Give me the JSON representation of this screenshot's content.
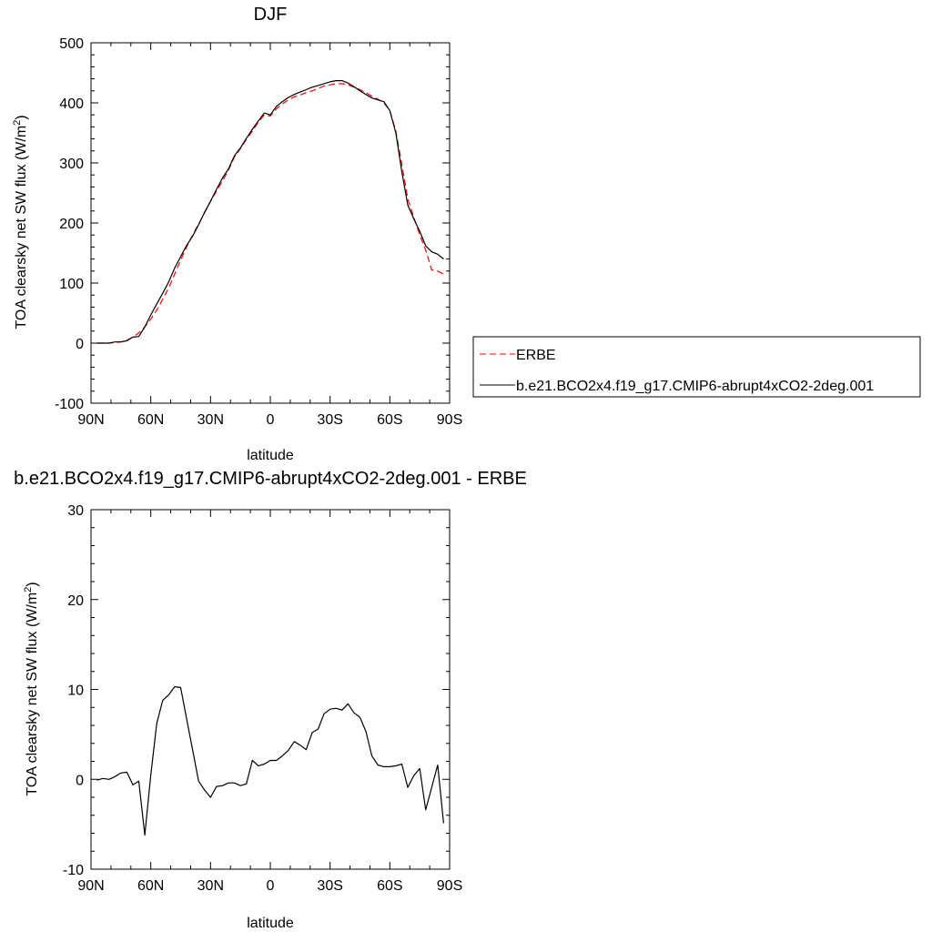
{
  "chart_data": [
    {
      "type": "line",
      "title": "DJF",
      "xlabel": "latitude",
      "ylabel": "TOA clearsky net SW flux (W/m",
      "ylabel_superscript": "2",
      "ylabel_close": ")",
      "xlim": [
        -90,
        90
      ],
      "ylim": [
        -100,
        500
      ],
      "x_ticks": [
        -90,
        -60,
        -30,
        0,
        30,
        60,
        90
      ],
      "x_tick_labels": [
        "90N",
        "60N",
        "30N",
        "0",
        "30S",
        "60S",
        "90S"
      ],
      "y_ticks": [
        -100,
        0,
        100,
        200,
        300,
        400,
        500
      ],
      "y_tick_labels": [
        "-100",
        "0",
        "100",
        "200",
        "300",
        "400",
        "500"
      ],
      "legend_position": "right",
      "grid": false,
      "series": [
        {
          "name": "ERBE",
          "color": "#ff0000",
          "dash": "dashed",
          "x": [
            -87,
            -84,
            -81,
            -78,
            -75,
            -72,
            -69,
            -66,
            -63,
            -60,
            -57,
            -54,
            -51,
            -48,
            -45,
            -42,
            -39,
            -36,
            -33,
            -30,
            -27,
            -24,
            -21,
            -18,
            -15,
            -12,
            -9,
            -6,
            -3,
            0,
            3,
            6,
            9,
            12,
            15,
            18,
            21,
            24,
            27,
            30,
            33,
            36,
            39,
            42,
            45,
            48,
            51,
            54,
            57,
            60,
            63,
            66,
            69,
            72,
            75,
            78,
            81,
            84,
            87
          ],
          "y": [
            0,
            0,
            0,
            1,
            2,
            5,
            10,
            17,
            27,
            40,
            55,
            73,
            92,
            115,
            138,
            160,
            180,
            198,
            217,
            236,
            253,
            270,
            288,
            310,
            324,
            339,
            353,
            368,
            380,
            378,
            390,
            398,
            405,
            410,
            413,
            417,
            420,
            424,
            428,
            430,
            432,
            432,
            430,
            426,
            422,
            417,
            411,
            406,
            400,
            387,
            353,
            298,
            240,
            210,
            180,
            155,
            122,
            120,
            115
          ]
        },
        {
          "name": "b.e21.BCO2x4.f19_g17.CMIP6-abrupt4xCO2-2deg.001",
          "color": "#000000",
          "dash": "solid",
          "x": [
            -87,
            -84,
            -81,
            -78,
            -75,
            -72,
            -69,
            -66,
            -63,
            -60,
            -57,
            -54,
            -51,
            -48,
            -45,
            -42,
            -39,
            -36,
            -33,
            -30,
            -27,
            -24,
            -21,
            -18,
            -15,
            -12,
            -9,
            -6,
            -3,
            0,
            3,
            6,
            9,
            12,
            15,
            18,
            21,
            24,
            27,
            30,
            33,
            36,
            39,
            42,
            45,
            48,
            51,
            54,
            57,
            60,
            63,
            66,
            69,
            72,
            75,
            78,
            81,
            84,
            87
          ],
          "y": [
            0,
            0,
            0,
            2,
            2,
            4,
            10,
            11,
            27,
            47,
            65,
            83,
            102,
            125,
            144,
            163,
            178,
            197,
            218,
            236,
            256,
            275,
            290,
            312,
            325,
            341,
            356,
            370,
            383,
            380,
            394,
            402,
            409,
            414,
            418,
            422,
            426,
            429,
            432,
            435,
            437,
            437,
            433,
            427,
            420,
            414,
            408,
            405,
            402,
            387,
            350,
            285,
            230,
            207,
            186,
            162,
            152,
            148,
            140
          ]
        }
      ]
    },
    {
      "type": "line",
      "title": "b.e21.BCO2x4.f19_g17.CMIP6-abrupt4xCO2-2deg.001 - ERBE",
      "xlabel": "latitude",
      "ylabel": "TOA clearsky net SW flux (W/m",
      "ylabel_superscript": "2",
      "ylabel_close": ")",
      "xlim": [
        -90,
        90
      ],
      "ylim": [
        -10,
        30
      ],
      "x_ticks": [
        -90,
        -60,
        -30,
        0,
        30,
        60,
        90
      ],
      "x_tick_labels": [
        "90N",
        "60N",
        "30N",
        "0",
        "30S",
        "60S",
        "90S"
      ],
      "y_ticks": [
        -10,
        0,
        10,
        20,
        30
      ],
      "y_tick_labels": [
        "-10",
        "0",
        "10",
        "20",
        "30"
      ],
      "grid": false,
      "series": [
        {
          "color": "#000000",
          "dash": "solid",
          "x": [
            -87,
            -84,
            -81,
            -78,
            -75,
            -72,
            -69,
            -66,
            -63,
            -60,
            -57,
            -54,
            -51,
            -48,
            -45,
            -42,
            -39,
            -36,
            -33,
            -30,
            -27,
            -24,
            -21,
            -18,
            -15,
            -12,
            -9,
            -6,
            -3,
            0,
            3,
            6,
            9,
            12,
            15,
            18,
            21,
            24,
            27,
            30,
            33,
            36,
            39,
            42,
            45,
            48,
            51,
            54,
            57,
            60,
            63,
            66,
            69,
            72,
            75,
            78,
            81,
            84,
            87
          ],
          "y": [
            -0.1,
            0.1,
            0,
            0.3,
            0.7,
            0.8,
            -0.6,
            -0.2,
            -6.2,
            0.5,
            6.2,
            8.8,
            9.4,
            10.3,
            10.2,
            6.7,
            3.3,
            -0.2,
            -1.2,
            -2.0,
            -0.8,
            -0.7,
            -0.4,
            -0.4,
            -0.7,
            -0.5,
            2.1,
            1.5,
            1.7,
            2.1,
            2.1,
            2.6,
            3.2,
            4.2,
            3.8,
            3.3,
            5.2,
            5.6,
            7.3,
            7.8,
            7.9,
            7.7,
            8.4,
            7.4,
            6.9,
            5.3,
            2.6,
            1.6,
            1.4,
            1.4,
            1.5,
            1.7,
            -0.9,
            0.4,
            1.2,
            -3.4,
            -0.9,
            1.6,
            -4.9
          ]
        }
      ]
    }
  ]
}
